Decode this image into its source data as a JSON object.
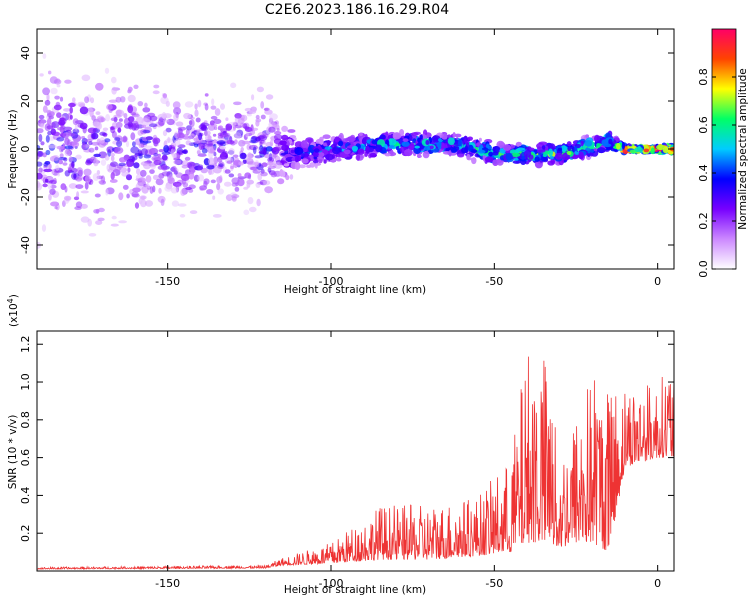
{
  "title": "C2E6.2023.186.16.29.R04",
  "chart_data": [
    {
      "type": "heatmap",
      "xlabel": "Height of straight line (km)",
      "ylabel": "Frequency (Hz)",
      "xlim": [
        -190,
        5
      ],
      "ylim": [
        -50,
        50
      ],
      "xticks": [
        -150,
        -100,
        -50,
        0
      ],
      "yticks": [
        -40,
        -20,
        0,
        20,
        40
      ],
      "colorbar": {
        "label": "Normalized spectral amplitude",
        "range": [
          0,
          1
        ],
        "ticks": [
          "0.0",
          "0.2",
          "0.4",
          "0.6",
          "0.8"
        ],
        "colors": [
          "#ffffff",
          "#cc88ff",
          "#7700ff",
          "#0000ff",
          "#00ccff",
          "#00ff66",
          "#ffff00",
          "#ff4400",
          "#ff0066"
        ]
      },
      "band": [
        {
          "x": -190,
          "f": 0,
          "amp": 0.12,
          "spread": 45
        },
        {
          "x": -120,
          "f": 0,
          "amp": 0.15,
          "spread": 30
        },
        {
          "x": -110,
          "f": -2,
          "amp": 0.35,
          "spread": 8
        },
        {
          "x": -85,
          "f": 2,
          "amp": 0.5,
          "spread": 6
        },
        {
          "x": -60,
          "f": 2,
          "amp": 0.5,
          "spread": 6
        },
        {
          "x": -50,
          "f": -2,
          "amp": 0.55,
          "spread": 6
        },
        {
          "x": -30,
          "f": -2,
          "amp": 0.6,
          "spread": 5
        },
        {
          "x": -15,
          "f": 3,
          "amp": 0.6,
          "spread": 5
        },
        {
          "x": -10,
          "f": 0,
          "amp": 0.9,
          "spread": 2
        },
        {
          "x": 5,
          "f": 0,
          "amp": 0.95,
          "spread": 2
        }
      ]
    },
    {
      "type": "line",
      "xlabel": "Height of straight line (km)",
      "ylabel": "SNR (10 * v/v)",
      "scale_label": "(x10",
      "scale_exp": "4",
      "scale_close": ")",
      "xlim": [
        -190,
        5
      ],
      "ylim": [
        0,
        1.27
      ],
      "xticks": [
        -150,
        -100,
        -50,
        0
      ],
      "yticks": [
        "0.2",
        "0.4",
        "0.6",
        "0.8",
        "1.0",
        "1.2"
      ],
      "color": "#ee3333",
      "envelope": [
        {
          "x": -190,
          "base": 0.01,
          "peak": 0.02
        },
        {
          "x": -120,
          "base": 0.015,
          "peak": 0.03
        },
        {
          "x": -115,
          "base": 0.03,
          "peak": 0.07
        },
        {
          "x": -100,
          "base": 0.04,
          "peak": 0.15
        },
        {
          "x": -85,
          "base": 0.06,
          "peak": 0.35
        },
        {
          "x": -70,
          "base": 0.06,
          "peak": 0.35
        },
        {
          "x": -55,
          "base": 0.08,
          "peak": 0.4
        },
        {
          "x": -45,
          "base": 0.1,
          "peak": 0.6
        },
        {
          "x": -40,
          "base": 0.15,
          "peak": 1.2
        },
        {
          "x": -35,
          "base": 0.15,
          "peak": 1.2
        },
        {
          "x": -30,
          "base": 0.12,
          "peak": 0.65
        },
        {
          "x": -25,
          "base": 0.15,
          "peak": 0.85
        },
        {
          "x": -20,
          "base": 0.15,
          "peak": 1.1
        },
        {
          "x": -15,
          "base": 0.1,
          "peak": 1.0
        },
        {
          "x": -10,
          "base": 0.55,
          "peak": 1.0
        },
        {
          "x": 0,
          "base": 0.6,
          "peak": 1.0
        },
        {
          "x": 5,
          "base": 0.6,
          "peak": 1.15
        }
      ]
    }
  ]
}
